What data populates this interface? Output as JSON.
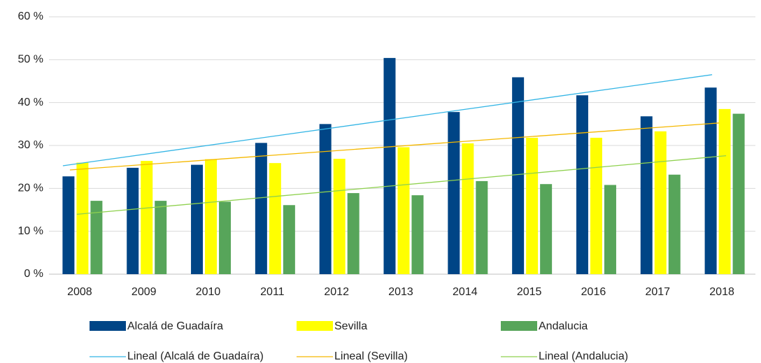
{
  "chart_data": {
    "type": "bar",
    "categories": [
      "2008",
      "2009",
      "2010",
      "2011",
      "2012",
      "2013",
      "2014",
      "2015",
      "2016",
      "2017",
      "2018"
    ],
    "series": [
      {
        "name": "Alcalá de Guadaíra",
        "color": "#004586",
        "values": [
          22.8,
          24.8,
          25.5,
          30.6,
          35.0,
          50.4,
          37.8,
          45.9,
          41.7,
          36.8,
          43.5
        ]
      },
      {
        "name": "Sevilla",
        "color": "#ffff00",
        "values": [
          26.0,
          26.4,
          26.8,
          25.9,
          26.9,
          29.6,
          30.5,
          31.8,
          31.8,
          33.3,
          38.5
        ]
      },
      {
        "name": "Andalucia",
        "color": "#57a55a",
        "values": [
          17.1,
          17.1,
          16.9,
          16.1,
          18.9,
          18.4,
          21.7,
          21.0,
          20.8,
          23.2,
          37.4
        ]
      }
    ],
    "trendlines": [
      {
        "name": "Lineal (Alcalá de Guadaíra)",
        "color": "#33b5e5",
        "series": 0
      },
      {
        "name": "Lineal (Sevilla)",
        "color": "#f5b800",
        "series": 1
      },
      {
        "name": "Lineal (Andalucia)",
        "color": "#8fd14f",
        "series": 2
      }
    ],
    "ylim": [
      0,
      60
    ],
    "yticks": [
      {
        "value": 0,
        "label": "0 %"
      },
      {
        "value": 10,
        "label": "10 %"
      },
      {
        "value": 20,
        "label": "20 %"
      },
      {
        "value": 30,
        "label": "30 %"
      },
      {
        "value": 40,
        "label": "40 %"
      },
      {
        "value": 50,
        "label": "50 %"
      },
      {
        "value": 60,
        "label": "60 %"
      }
    ],
    "grid": true,
    "legend": "bottom"
  }
}
